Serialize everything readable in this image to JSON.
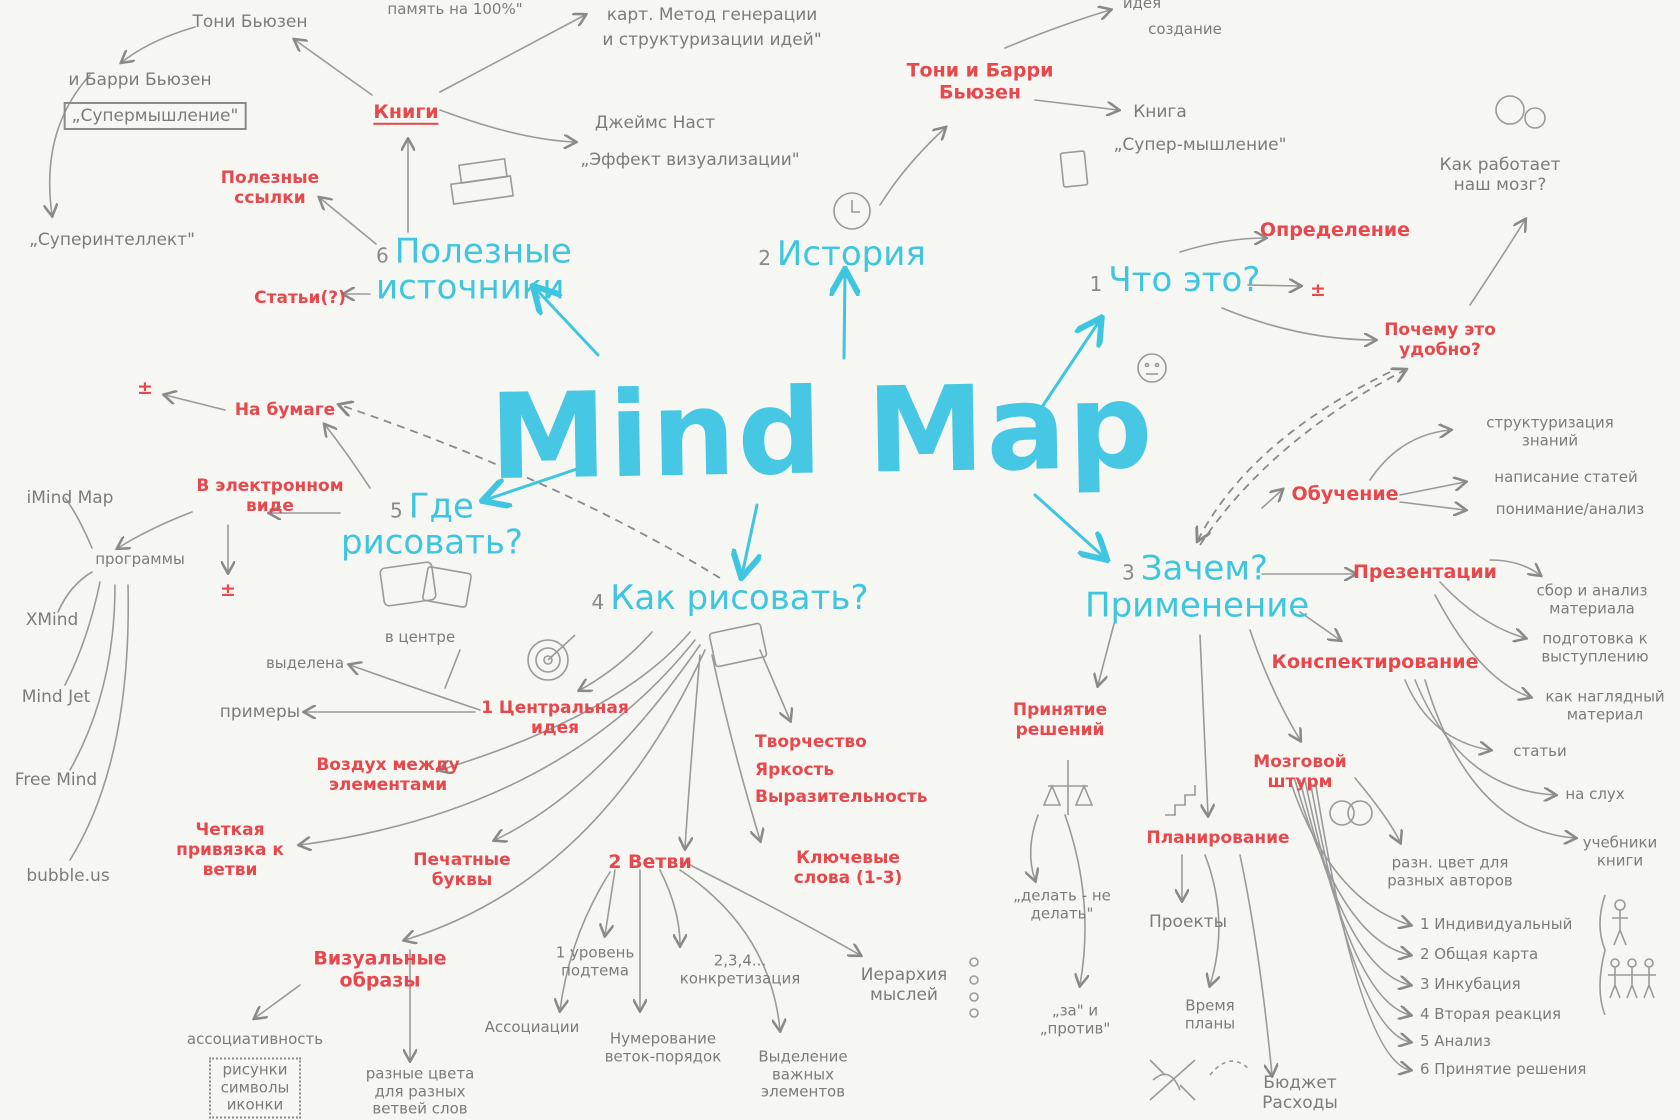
{
  "center": {
    "title": "Mind Map"
  },
  "sources": {
    "header": "Полезные источники",
    "number": "6",
    "books": "Книги",
    "useful_links": "Полезные ссылки",
    "articles": "Статьи(?)",
    "tony_buzan": "Тони Бьюзен",
    "barry_buzan_line1": "и Барри Бьюзен",
    "supermind_box": "„Супермышление\"",
    "superintellect": "„Суперинтеллект\"",
    "memory": "память на 100%\"",
    "kart_method_line1": "карт. Метод генерации",
    "kart_method_line2": "и структуризации идей\"",
    "james_nast": "Джеймс Наст",
    "visualization_effect": "„Эффект визуализации\""
  },
  "history": {
    "header": "История",
    "number": "2",
    "authors": "Тони и Барри Бьюзен",
    "idea_line1": "идея",
    "idea_line2": "создание",
    "book_line1": "Книга",
    "book_line2": "„Супер-мышление\""
  },
  "what": {
    "header": "Что это?",
    "number": "1",
    "definition": "Определение",
    "plusminus": "±",
    "why_convenient": "Почему это удобно?",
    "how_brain_works": "Как работает наш мозг?"
  },
  "where": {
    "header": "Где рисовать?",
    "number": "5",
    "on_paper": "На бумаге",
    "plusminus_top": "±",
    "electronic": "В электронном виде",
    "plusminus_bottom": "±",
    "programs": "программы",
    "apps": [
      "iMind Map",
      "XMind",
      "Mind Jet",
      "Free Mind",
      "bubble.us"
    ]
  },
  "how": {
    "header": "Как рисовать?",
    "number": "4",
    "central_idea": "1 Центральная идея",
    "in_center": "в центре",
    "highlighted": "выделена",
    "examples": "примеры",
    "air": "Воздух между элементами",
    "clear_binding": "Четкая привязка к ветви",
    "print_letters": "Печатные буквы",
    "visual_images": "Визуальные образы",
    "association": "ассоциативность",
    "pictures_box": "рисунки символы иконки",
    "diff_colors": "разные цвета для разных ветвей слов",
    "branches": "2 Ветви",
    "level1": "1 уровень подтема",
    "level234": "2,3,4... конкретизация",
    "associations": "Ассоциации",
    "numbering": "Нумерование веток-порядок",
    "highlight_important": "Выделение важных элементов",
    "hierarchy": "Иерархия мыслей",
    "creativity": "Творчество",
    "brightness": "Яркость",
    "expressiveness": "Выразительность",
    "keywords": "Ключевые слова (1-3)"
  },
  "why": {
    "header": "Зачем? Применение",
    "number": "3",
    "learning": "Обучение",
    "learn_items": [
      "структуризация знаний",
      "написание статей",
      "понимание/анализ"
    ],
    "presentations": "Презентации",
    "pres_items": [
      "сбор и анализ материала",
      "подготовка к выступлению",
      "как наглядный материал"
    ],
    "summarizing": "Конспектирование",
    "summ_items": [
      "статьи",
      "на слух",
      "учебники книги"
    ],
    "decisions": "Принятие решений",
    "do_not_do": "„делать - не делать\"",
    "pros_cons": "„за\" и „против\"",
    "planning": "Планирование",
    "projects": "Проекты",
    "time": "Время планы",
    "budget": "Бюджет Расходы",
    "brainstorm": "Мозговой штурм",
    "authors_colors": "разн. цвет для разных авторов",
    "brainstorm_steps": [
      "1 Индивидуальный",
      "2 Общая карта",
      "3 Инкубация",
      "4 Вторая реакция",
      "5 Анализ",
      "6 Принятие решения"
    ]
  },
  "colors": {
    "red": "#e8474c",
    "cyan": "#3ec6e0",
    "gray": "#7c7c7c"
  }
}
